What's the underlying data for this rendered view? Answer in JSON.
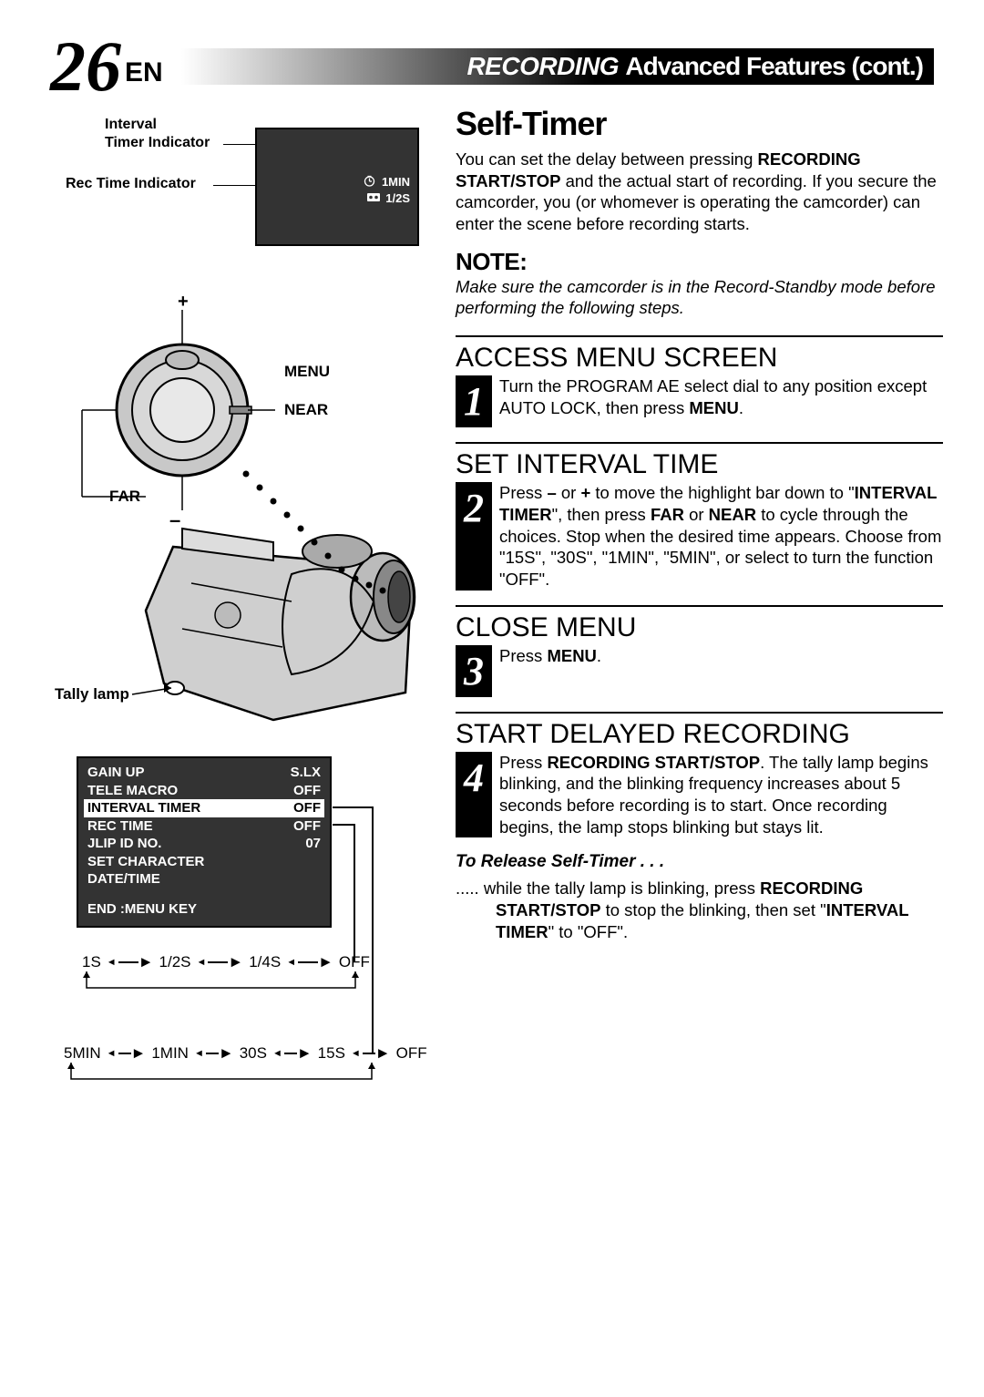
{
  "header": {
    "page_number": "26",
    "page_lang": "EN",
    "title_italic": "RECORDING",
    "title_rest": "Advanced Features (cont.)"
  },
  "viewfinder": {
    "label_interval": "Interval",
    "label_timer_indicator": "Timer Indicator",
    "label_rec_time_indicator": "Rec Time Indicator",
    "value_1min": "1MIN",
    "value_12s": "1/2S"
  },
  "camera": {
    "label_plus": "+",
    "label_menu": "MENU",
    "label_near": "NEAR",
    "label_far": "FAR",
    "label_minus": "–",
    "label_tally": "Tally lamp"
  },
  "menu": {
    "rows": [
      {
        "name": "GAIN UP",
        "value": "S.LX"
      },
      {
        "name": "TELE MACRO",
        "value": "OFF"
      },
      {
        "name": "INTERVAL TIMER",
        "value": "OFF"
      },
      {
        "name": "REC TIME",
        "value": "OFF"
      },
      {
        "name": "JLIP ID NO.",
        "value": "07"
      },
      {
        "name": "SET CHARACTER",
        "value": ""
      },
      {
        "name": "DATE/TIME",
        "value": ""
      }
    ],
    "end": "END :MENU KEY",
    "cycle1": [
      "1S",
      "1/2S",
      "1/4S",
      "OFF"
    ],
    "cycle2": [
      "5MIN",
      "1MIN",
      "30S",
      "15S",
      "OFF"
    ]
  },
  "content": {
    "self_timer_title": "Self-Timer",
    "self_timer_intro": "You can set the delay between pressing <b>RECORDING START/STOP</b> and the actual start of recording. If you secure the camcorder, you (or whomever is operating the camcorder) can enter the scene before recording starts.",
    "note_heading": "NOTE:",
    "note_text": "Make sure the camcorder is in the Record-Standby mode before performing the following steps.",
    "steps": [
      {
        "num": "1",
        "title": "ACCESS MENU SCREEN",
        "body": "Turn the PROGRAM AE select dial to any position except AUTO LOCK, then press <b>MENU</b>."
      },
      {
        "num": "2",
        "title": "SET INTERVAL TIME",
        "body": "Press <b>–</b> or <b>+</b> to move the highlight bar down to \"<b>INTERVAL TIMER</b>\", then press <b>FAR</b> or <b>NEAR</b> to cycle through the choices. Stop when the desired time appears. Choose from \"15S\", \"30S\", \"1MIN\", \"5MIN\", or select to turn the function \"OFF\"."
      },
      {
        "num": "3",
        "title": "CLOSE MENU",
        "body": "Press <b>MENU</b>."
      },
      {
        "num": "4",
        "title": "START DELAYED RECORDING",
        "body": "Press <b>RECORDING START/STOP</b>. The tally lamp begins blinking, and the blinking frequency increases about 5 seconds before recording is to start. Once recording begins, the lamp stops blinking but stays lit."
      }
    ],
    "release_heading": "To Release Self-Timer . . .",
    "release_body": "..... while the tally lamp is blinking, press <b>RECORDING START/STOP</b> to stop the blinking, then set \"<b>INTERVAL TIMER</b>\" to \"OFF\"."
  }
}
